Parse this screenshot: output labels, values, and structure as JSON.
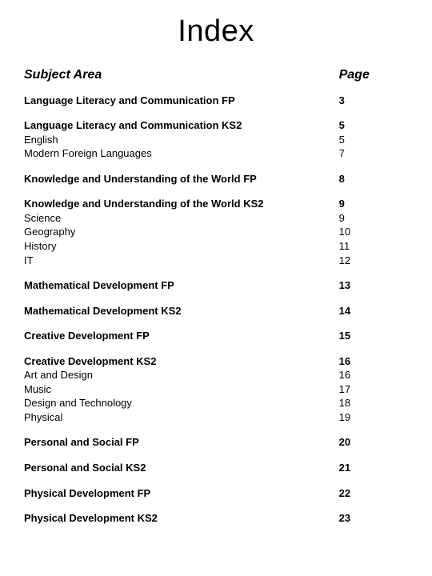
{
  "title": "Index",
  "headers": {
    "subject": "Subject Area",
    "page": "Page"
  },
  "sections": [
    {
      "title": "Language Literacy and Communication FP",
      "page": "3",
      "subs": []
    },
    {
      "title": "Language Literacy and Communication KS2",
      "page": "5",
      "subs": [
        {
          "title": "English",
          "page": "5"
        },
        {
          "title": "Modern Foreign Languages",
          "page": "7"
        }
      ]
    },
    {
      "title": "Knowledge and Understanding of the World FP",
      "page": "8",
      "subs": []
    },
    {
      "title": "Knowledge and Understanding of the World KS2",
      "page": "9",
      "subs": [
        {
          "title": "Science",
          "page": "9"
        },
        {
          "title": "Geography",
          "page": "10"
        },
        {
          "title": "History",
          "page": "11"
        },
        {
          "title": "IT",
          "page": "12"
        }
      ]
    },
    {
      "title": "Mathematical Development FP",
      "page": "13",
      "subs": []
    },
    {
      "title": "Mathematical Development KS2",
      "page": "14",
      "subs": []
    },
    {
      "title": "Creative Development FP",
      "page": "15",
      "subs": []
    },
    {
      "title": "Creative Development KS2",
      "page": "16",
      "subs": [
        {
          "title": "Art and Design",
          "page": "16"
        },
        {
          "title": "Music",
          "page": "17"
        },
        {
          "title": "Design and Technology",
          "page": "18"
        },
        {
          "title": "Physical",
          "page": "19"
        }
      ]
    },
    {
      "title": "Personal and Social FP",
      "page": "20",
      "subs": []
    },
    {
      "title": "Personal and Social KS2",
      "page": "21",
      "subs": []
    },
    {
      "title": "Physical Development FP",
      "page": "22",
      "subs": []
    },
    {
      "title": "Physical Development KS2",
      "page": "23",
      "subs": []
    }
  ]
}
